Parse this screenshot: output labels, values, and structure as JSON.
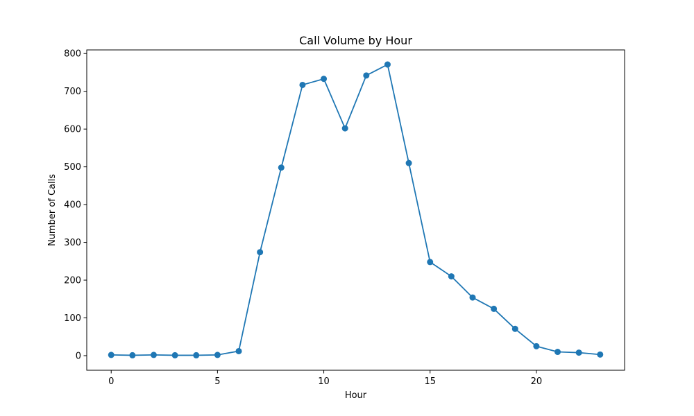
{
  "chart_data": {
    "type": "line",
    "title": "Call Volume by Hour",
    "xlabel": "Hour",
    "ylabel": "Number of Calls",
    "x": [
      0,
      1,
      2,
      3,
      4,
      5,
      6,
      7,
      8,
      9,
      10,
      11,
      12,
      13,
      14,
      15,
      16,
      17,
      18,
      19,
      20,
      21,
      22,
      23
    ],
    "series": [
      {
        "values": [
          2,
          1,
          2,
          1,
          1,
          2,
          12,
          274,
          498,
          717,
          733,
          602,
          742,
          771,
          510,
          248,
          210,
          154,
          124,
          71,
          25,
          10,
          8,
          3
        ],
        "color": "#1f77b4",
        "marker": "circle"
      }
    ],
    "xlim": [
      -1.15,
      24.15
    ],
    "ylim": [
      -38.6,
      809.6
    ],
    "xticks": [
      0,
      5,
      10,
      15,
      20
    ],
    "yticks": [
      0,
      100,
      200,
      300,
      400,
      500,
      600,
      700,
      800
    ],
    "grid": false,
    "legend": false
  }
}
